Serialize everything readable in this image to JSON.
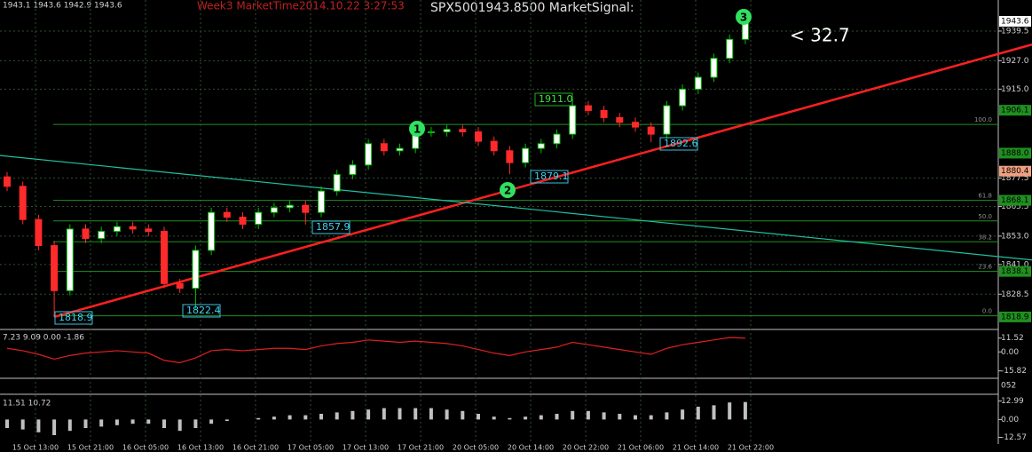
{
  "header": {
    "ohlc": "1943.1 1943.6 1942.9 1943.6",
    "market_time": "Week3   MarketTime2014.10.22 3:27:53",
    "signal": "SPX5001943.8500  MarketSignal:",
    "diff": "< 32.7"
  },
  "price_labels": [
    "1818.9",
    "1822.4",
    "1857.9",
    "1879.1",
    "1892.6",
    "1911.0"
  ],
  "wave_labels": [
    "1",
    "2",
    "3"
  ],
  "date_labels": [
    "15 Oct 13:00",
    "15 Oct 21:00",
    "16 Oct 05:00",
    "16 Oct 13:00",
    "16 Oct 21:00",
    "17 Oct 05:00",
    "17 Oct 13:00",
    "17 Oct 21:00",
    "20 Oct 05:00",
    "20 Oct 14:00",
    "20 Oct 22:00",
    "21 Oct 06:00",
    "21 Oct 14:00",
    "21 Oct 22:00"
  ],
  "chart_data": [
    {
      "type": "candlestick",
      "up_color": "#ffffff",
      "up_wick": "#00c000",
      "down_color": "#ff2a2a",
      "grid": true,
      "ylim": [
        1814,
        1952.6
      ],
      "yticks": [
        1939.5,
        {
          "value": 1927,
          "label": "1927.0"
        },
        {
          "value": 1915,
          "label": "1915.0"
        },
        1877.5,
        1865.5,
        {
          "value": 1853,
          "label": "1853.0"
        },
        {
          "value": 1841,
          "label": "1841.0"
        },
        1828.5
      ],
      "current_price": 1943.6,
      "open": [
        1878,
        1874,
        1860,
        1849,
        1830,
        1856,
        1852,
        1855,
        1857,
        1856,
        1855,
        1833,
        1831,
        1847,
        1863,
        1861,
        1858,
        1863,
        1865,
        1866,
        1863,
        1872,
        1879,
        1883,
        1892,
        1889,
        1890,
        1897,
        1897,
        1898,
        1897,
        1893,
        1889,
        1884,
        1890,
        1892,
        1896,
        1908,
        1906,
        1903,
        1901,
        1899,
        1896,
        1908,
        1915,
        1920,
        1928,
        1936
      ],
      "high": [
        1880,
        1876,
        1862,
        1851,
        1858,
        1858,
        1857,
        1859,
        1859,
        1858,
        1857,
        1835,
        1849,
        1865,
        1865,
        1863,
        1865,
        1867,
        1868,
        1868,
        1874,
        1881,
        1885,
        1894,
        1894,
        1892,
        1899,
        1899,
        1900,
        1900,
        1899,
        1895,
        1891,
        1892,
        1894,
        1898,
        1911.0,
        1910,
        1908,
        1905,
        1903,
        1901,
        1910,
        1917,
        1922,
        1930,
        1938,
        1945.5
      ],
      "low": [
        1872,
        1858,
        1847,
        1818.9,
        1828,
        1850,
        1850,
        1853,
        1854,
        1853,
        1831,
        1829,
        1822.4,
        1845,
        1859,
        1856,
        1856,
        1861,
        1863,
        1857.9,
        1861,
        1870,
        1877,
        1881,
        1887,
        1887,
        1888,
        1895,
        1895,
        1895,
        1891,
        1887,
        1879.1,
        1882,
        1888,
        1890,
        1894,
        1904,
        1901,
        1899,
        1897,
        1892.6,
        1894,
        1906,
        1913,
        1918,
        1926,
        1934
      ],
      "close": [
        1874,
        1860,
        1849,
        1830,
        1856,
        1852,
        1855,
        1857,
        1856,
        1855,
        1833,
        1831,
        1847,
        1863,
        1861,
        1858,
        1863,
        1865,
        1866,
        1863,
        1872,
        1879,
        1883,
        1892,
        1889,
        1890,
        1897,
        1897,
        1898,
        1897,
        1893,
        1889,
        1884,
        1890,
        1892,
        1896,
        1908,
        1906,
        1903,
        1901,
        1899,
        1896,
        1908,
        1915,
        1920,
        1928,
        1936,
        1943.6
      ],
      "trendlines": [
        {
          "color": "#ff2020",
          "x": [
            3,
            65.3
          ],
          "y": [
            1818.9,
            1933.9
          ]
        },
        {
          "color": "#20c0a0",
          "x": [
            -0.45,
            65.3
          ],
          "y": [
            1887,
            1842.9
          ]
        }
      ],
      "fib_levels": [
        {
          "label": "0.0",
          "price": 1819.4
        },
        {
          "label": "23.6",
          "price": 1838.1
        },
        {
          "label": "38.2",
          "price": 1850.6
        },
        {
          "label": "50.0",
          "price": 1859.4
        },
        {
          "label": "61.8",
          "price": 1868.1
        },
        {
          "label": "100.0",
          "price": 1900.1
        }
      ],
      "price_tags": [
        1906.1,
        {
          "value": 1888,
          "label": "1888.0"
        },
        1880.4,
        1868.1,
        1838.1,
        1818.9
      ]
    },
    {
      "type": "line",
      "readout": "7.23 9.09 0.00 -1.86",
      "color": "#e02020",
      "ylim": [
        -22,
        18
      ],
      "yticks": [
        11.52,
        {
          "value": 0,
          "label": "0.00"
        },
        -15.82
      ],
      "values": [
        3,
        1,
        -2,
        -6,
        -3,
        -1,
        0,
        1,
        0,
        -1,
        -7,
        -9,
        -5,
        1,
        2,
        1,
        2,
        3,
        3,
        2,
        5,
        7,
        8,
        10,
        9,
        8,
        9,
        8,
        7,
        5,
        2,
        -1,
        -3,
        0,
        2,
        4,
        8,
        6,
        4,
        2,
        0,
        -2,
        3,
        6,
        8,
        10,
        12,
        11.5
      ]
    },
    {
      "type": "bar",
      "readout": "11.51 10.72",
      "color": "#c0c0c0",
      "ylim": [
        -18.5,
        16.5
      ],
      "yticks": [
        12.99,
        {
          "value": 0,
          "label": "0.00"
        },
        -12.57
      ],
      "values": [
        -6,
        -7,
        -9,
        -11,
        -8,
        -6,
        -5,
        -4,
        -3,
        -3,
        -6,
        -8,
        -6,
        -3,
        -1,
        0,
        1,
        2,
        3,
        3,
        4,
        5,
        6,
        7,
        8,
        8,
        8,
        8,
        7,
        6,
        4,
        2,
        1,
        2,
        3,
        4,
        6,
        6,
        5,
        4,
        3,
        3,
        5,
        7,
        9,
        10,
        12,
        12.3
      ]
    }
  ]
}
